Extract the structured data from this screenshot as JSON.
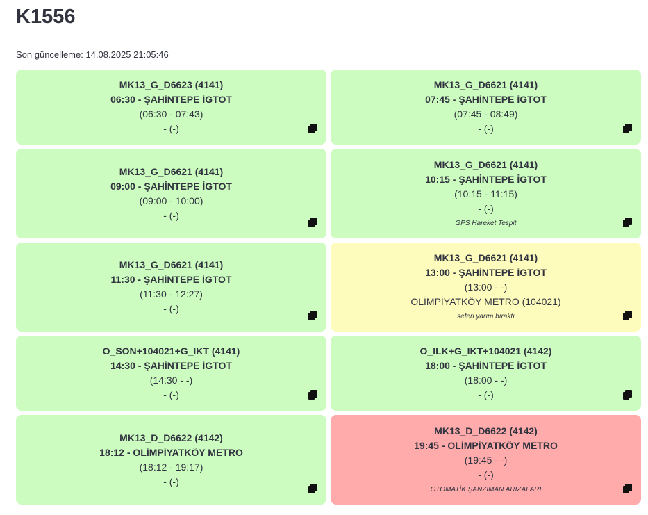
{
  "header": {
    "title": "K1556",
    "last_update": "Son güncelleme: 14.08.2025 21:05:46"
  },
  "colors": {
    "green": "#ccfcc0",
    "yellow": "#fdfcbc",
    "red": "#ffabab"
  },
  "cards": [
    {
      "code": "MK13_G_D6623 (4141)",
      "departure": "06:30 - ŞAHİNTEPE İGTOT",
      "time_range": "(06:30 - 07:43)",
      "location": "- (-)",
      "status": "green",
      "icon": "copy-icon"
    },
    {
      "code": "MK13_G_D6621 (4141)",
      "departure": "07:45 - ŞAHİNTEPE İGTOT",
      "time_range": "(07:45 - 08:49)",
      "location": "- (-)",
      "status": "green",
      "icon": "copy-icon"
    },
    {
      "code": "MK13_G_D6621 (4141)",
      "departure": "09:00 - ŞAHİNTEPE İGTOT",
      "time_range": "(09:00 - 10:00)",
      "location": "- (-)",
      "status": "green",
      "icon": "copy-icon"
    },
    {
      "code": "MK13_G_D6621 (4141)",
      "departure": "10:15 - ŞAHİNTEPE İGTOT",
      "time_range": "(10:15 - 11:15)",
      "location": "- (-)",
      "note": "GPS Hareket Tespit",
      "status": "green",
      "icon": "copy-icon"
    },
    {
      "code": "MK13_G_D6621 (4141)",
      "departure": "11:30 - ŞAHİNTEPE İGTOT",
      "time_range": "(11:30 - 12:27)",
      "location": "- (-)",
      "status": "green",
      "icon": "copy-icon"
    },
    {
      "code": "MK13_G_D6621 (4141)",
      "departure": "13:00 - ŞAHİNTEPE İGTOT",
      "time_range": "(13:00 - -)",
      "location": "OLİMPİYATKÖY METRO (104021)",
      "note": "seferi yarım bıraktı",
      "status": "yellow",
      "icon": "copy-icon"
    },
    {
      "code": "O_SON+104021+G_IKT (4141)",
      "departure": "14:30 - ŞAHİNTEPE İGTOT",
      "time_range": "(14:30 - -)",
      "location": "- (-)",
      "status": "green",
      "icon": "copy-icon"
    },
    {
      "code": "O_ILK+G_IKT+104021 (4142)",
      "departure": "18:00 - ŞAHİNTEPE İGTOT",
      "time_range": "(18:00 - -)",
      "location": "- (-)",
      "status": "green",
      "icon": "copy-icon"
    },
    {
      "code": "MK13_D_D6622 (4142)",
      "departure": "18:12 - OLİMPİYATKÖY METRO",
      "time_range": "(18:12 - 19:17)",
      "location": "- (-)",
      "status": "green",
      "icon": "copy-icon"
    },
    {
      "code": "MK13_D_D6622 (4142)",
      "departure": "19:45 - OLİMPİYATKÖY METRO",
      "time_range": "(19:45 - -)",
      "location": "- (-)",
      "note": "OTOMATİK ŞANZIMAN ARIZALARI",
      "status": "red",
      "icon": "copy-icon"
    }
  ]
}
